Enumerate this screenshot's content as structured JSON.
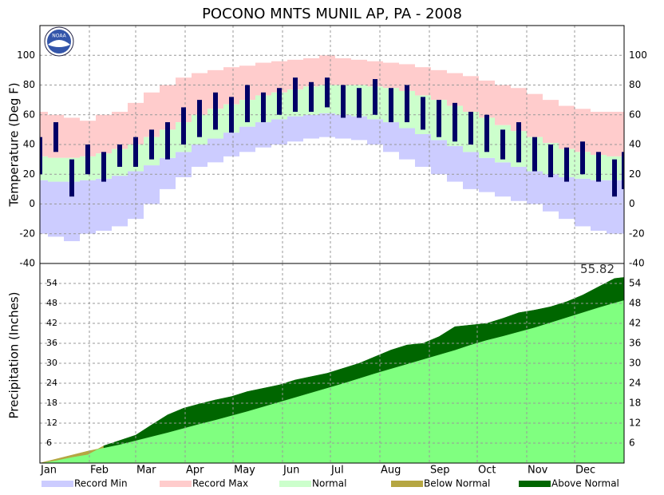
{
  "logo_text": "NOAA",
  "chart_data": [
    {
      "type": "temperature_bands",
      "title": "POCONO MNTS MUNIL AP, PA - 2008",
      "y_label": "Temperature (Deg F)",
      "x": [
        0,
        10,
        20,
        30,
        40,
        50,
        60,
        70,
        80,
        90,
        100,
        110,
        120,
        130,
        140,
        150,
        160,
        170,
        180,
        190,
        200,
        210,
        220,
        230,
        240,
        250,
        260,
        270,
        280,
        290,
        300,
        310,
        320,
        330,
        340,
        350,
        360,
        366
      ],
      "xlim": [
        0,
        366
      ],
      "xticks": [
        0,
        31,
        60,
        91,
        121,
        152,
        182,
        213,
        244,
        274,
        305,
        335
      ],
      "ylim": [
        -40,
        120
      ],
      "yticks": [
        -40,
        -20,
        0,
        20,
        40,
        60,
        80,
        100
      ],
      "grid": true,
      "series": [
        {
          "name": "Record Min",
          "color": "#ccccff",
          "values": [
            -20,
            -22,
            -25,
            -20,
            -18,
            -15,
            -10,
            0,
            10,
            18,
            25,
            28,
            32,
            35,
            38,
            40,
            42,
            44,
            45,
            44,
            43,
            40,
            35,
            30,
            25,
            20,
            15,
            10,
            8,
            5,
            2,
            0,
            -5,
            -10,
            -15,
            -18,
            -20,
            -20
          ]
        },
        {
          "name": "Record Max",
          "color": "#ffcccc",
          "values": [
            62,
            60,
            58,
            56,
            60,
            62,
            68,
            75,
            80,
            85,
            88,
            90,
            92,
            93,
            95,
            96,
            97,
            98,
            100,
            98,
            97,
            96,
            95,
            94,
            92,
            90,
            88,
            86,
            83,
            80,
            78,
            74,
            70,
            66,
            64,
            62,
            62,
            62
          ]
        },
        {
          "name": "Normal",
          "color": "#ccffcc",
          "low": [
            16,
            15,
            15,
            16,
            17,
            19,
            22,
            26,
            31,
            35,
            40,
            44,
            48,
            52,
            55,
            57,
            59,
            60,
            61,
            60,
            59,
            57,
            55,
            51,
            47,
            43,
            39,
            35,
            31,
            28,
            25,
            22,
            20,
            18,
            17,
            16,
            16,
            16
          ],
          "high": [
            32,
            31,
            31,
            32,
            34,
            37,
            40,
            45,
            50,
            55,
            60,
            64,
            67,
            70,
            73,
            75,
            77,
            79,
            80,
            80,
            80,
            79,
            78,
            76,
            73,
            70,
            66,
            62,
            58,
            53,
            49,
            45,
            41,
            37,
            35,
            33,
            32,
            32
          ]
        }
      ],
      "observed": {
        "color": "#000066",
        "low": [
          20,
          35,
          5,
          20,
          15,
          25,
          25,
          30,
          30,
          40,
          45,
          50,
          48,
          55,
          55,
          60,
          62,
          62,
          65,
          58,
          58,
          60,
          55,
          55,
          50,
          45,
          42,
          40,
          35,
          30,
          28,
          22,
          18,
          15,
          20,
          15,
          5,
          10
        ],
        "high": [
          45,
          55,
          30,
          40,
          35,
          40,
          45,
          50,
          55,
          65,
          70,
          75,
          72,
          80,
          75,
          78,
          85,
          82,
          85,
          80,
          78,
          84,
          78,
          80,
          72,
          70,
          68,
          62,
          60,
          50,
          55,
          45,
          40,
          38,
          42,
          35,
          30,
          35
        ]
      }
    },
    {
      "type": "cumulative_precip",
      "y_label": "Precipitation (Inches)",
      "x": [
        0,
        10,
        20,
        30,
        40,
        50,
        60,
        70,
        80,
        90,
        100,
        110,
        120,
        130,
        140,
        150,
        160,
        170,
        180,
        190,
        200,
        210,
        220,
        230,
        240,
        250,
        260,
        270,
        280,
        290,
        300,
        310,
        320,
        330,
        340,
        350,
        360,
        366
      ],
      "xlim": [
        0,
        366
      ],
      "xticks": [
        {
          "value": 0,
          "label": "Jan"
        },
        {
          "value": 31,
          "label": "Feb"
        },
        {
          "value": 60,
          "label": "Mar"
        },
        {
          "value": 91,
          "label": "Apr"
        },
        {
          "value": 121,
          "label": "May"
        },
        {
          "value": 152,
          "label": "Jun"
        },
        {
          "value": 182,
          "label": "Jul"
        },
        {
          "value": 213,
          "label": "Aug"
        },
        {
          "value": 244,
          "label": "Sep"
        },
        {
          "value": 274,
          "label": "Oct"
        },
        {
          "value": 305,
          "label": "Nov"
        },
        {
          "value": 335,
          "label": "Dec"
        }
      ],
      "ylim": [
        0,
        60
      ],
      "yticks": [
        6,
        12,
        18,
        24,
        30,
        36,
        42,
        48,
        54
      ],
      "grid": true,
      "normal": {
        "color": "#80ff80",
        "values": [
          0,
          1.2,
          2.4,
          3.6,
          4.6,
          5.6,
          6.8,
          8.0,
          9.2,
          10.5,
          11.8,
          13.0,
          14.3,
          15.6,
          17,
          18.4,
          19.8,
          21.2,
          22.6,
          24,
          25.5,
          27,
          28.4,
          29.8,
          31.2,
          32.6,
          34,
          35.6,
          37,
          38.2,
          39.5,
          40.8,
          42.3,
          43.8,
          45.3,
          46.8,
          48.2,
          49
        ]
      },
      "observed": {
        "values": [
          0,
          0.8,
          1.8,
          2.6,
          5.2,
          6.8,
          8.4,
          11.5,
          14.5,
          16.5,
          17.8,
          19,
          20,
          21.5,
          22.5,
          23.5,
          25,
          26,
          27,
          28.5,
          30,
          32,
          34,
          35.5,
          36,
          38,
          41,
          41.5,
          42,
          43.5,
          45.2,
          46,
          47,
          48.5,
          50.5,
          53,
          55.5,
          55.82
        ]
      },
      "departure": [
        {
          "name": "Below Normal",
          "color": "#b5a642"
        },
        {
          "name": "Above Normal",
          "color": "#006600"
        }
      ]
    }
  ]
}
